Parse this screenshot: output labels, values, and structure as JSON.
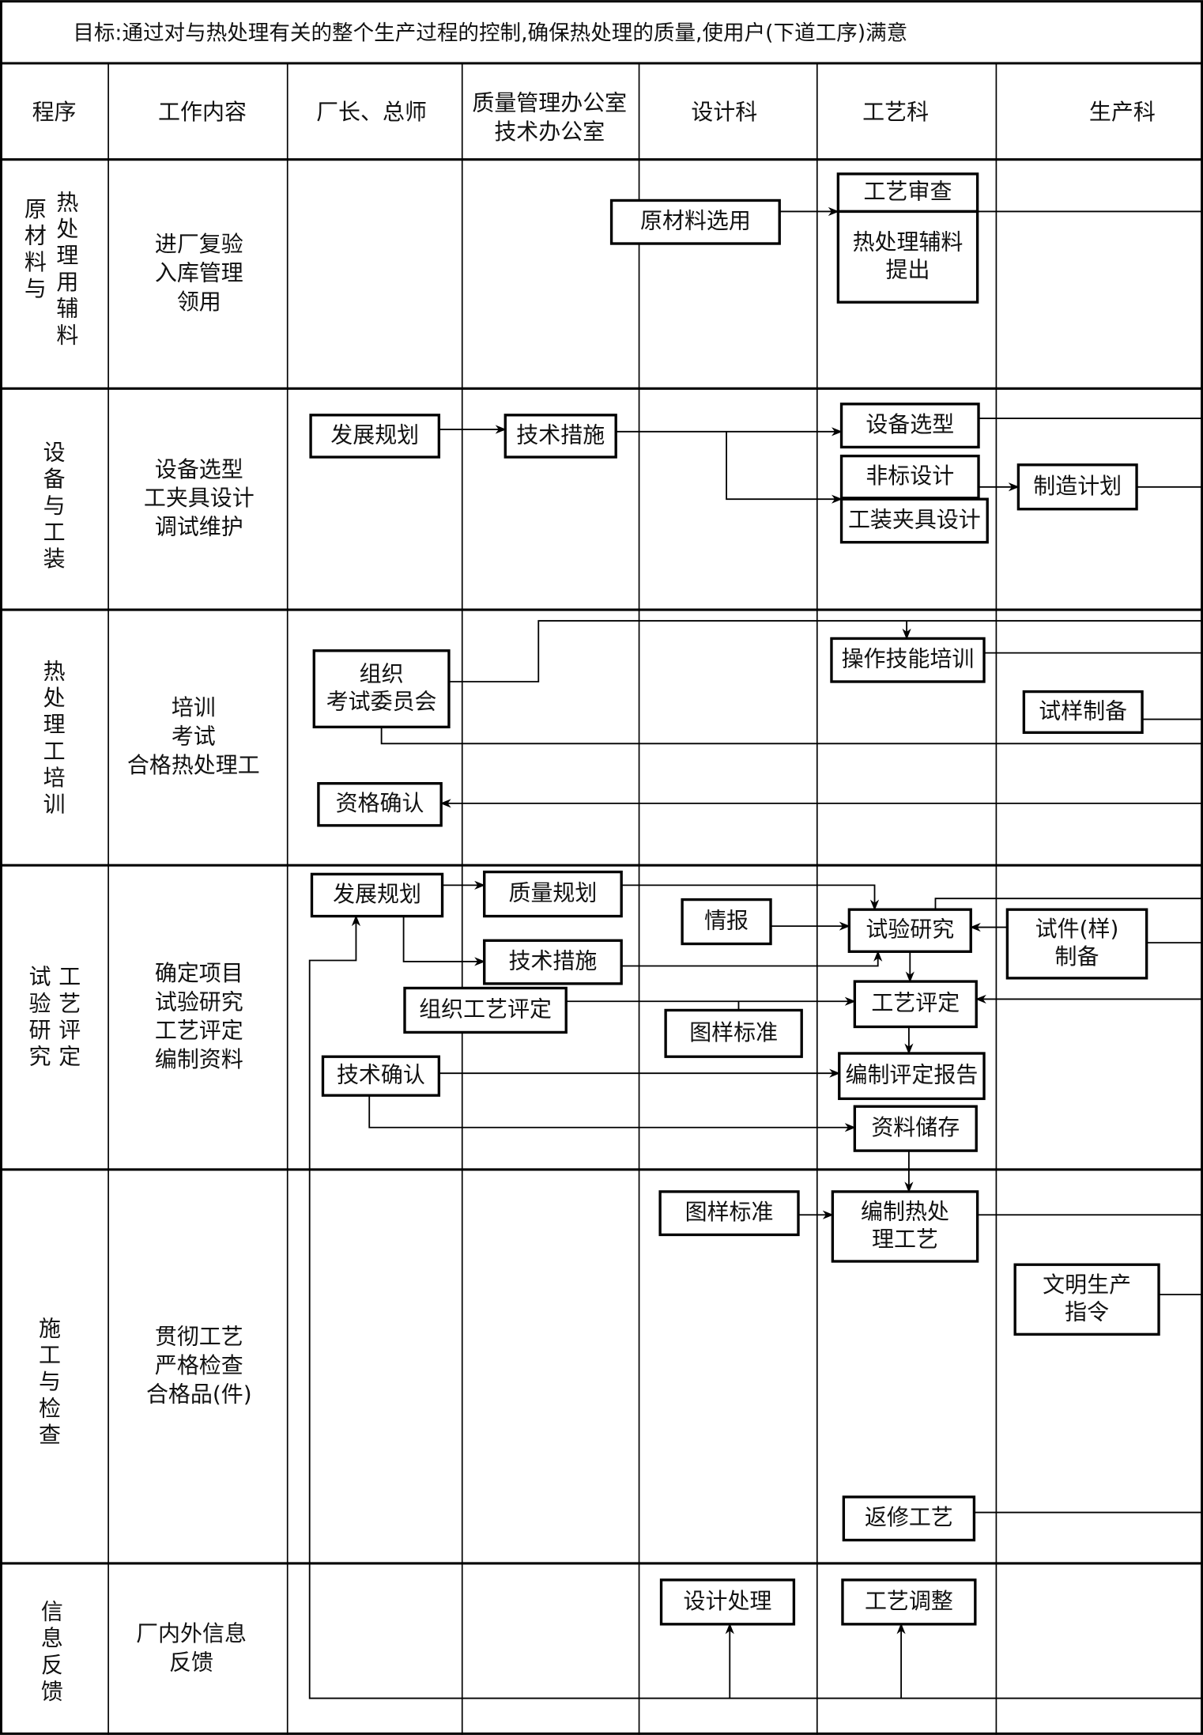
{
  "goal": "目标:通过对与热处理有关的整个生产过程的控制,确保热处理的质量,使用户(下道工序)满意",
  "headers": [
    "程序",
    "工作内容",
    "厂长、总师",
    [
      "质量管理办公室",
      "技术办公室"
    ],
    "设计科",
    "工艺科",
    "生产科"
  ],
  "rows": [
    {
      "procedure": [
        "原材料与",
        "热处理用辅料"
      ],
      "content": [
        "进厂复验",
        "入库管理",
        "领用"
      ]
    },
    {
      "procedure": [
        "设备与工装"
      ],
      "content": [
        "设备选型",
        "工夹具设计",
        "调试维护"
      ]
    },
    {
      "procedure": [
        "热处理工培训"
      ],
      "content": [
        "培训",
        "考试",
        "合格热处理工"
      ]
    },
    {
      "procedure": [
        "试验研究",
        "工艺评定"
      ],
      "content": [
        "确定项目",
        "试验研究",
        "工艺评定",
        "编制资料"
      ]
    },
    {
      "procedure": [
        "施工与检查"
      ],
      "content": [
        "贯彻工艺",
        "严格检查",
        "合格品(件)"
      ]
    },
    {
      "procedure": [
        "信息反馈"
      ],
      "content": [
        "厂内外信息",
        "反馈"
      ]
    }
  ],
  "boxes": {
    "raw_select": [
      "原材料选用"
    ],
    "process_review": [
      "工艺审查"
    ],
    "aux_material": [
      "热处理辅料",
      "提出"
    ],
    "dev_plan_1": [
      "发展规划"
    ],
    "tech_measure_1": [
      "技术措施"
    ],
    "equip_select": [
      "设备选型"
    ],
    "nonstd_design": [
      "非标设计"
    ],
    "fixture_design": [
      "工装夹具设计"
    ],
    "mfg_plan": [
      "制造计划"
    ],
    "exam_committee": [
      "组织",
      "考试委员会"
    ],
    "skill_training": [
      "操作技能培训"
    ],
    "sample_prep": [
      "试样制备"
    ],
    "qualification": [
      "资格确认"
    ],
    "dev_plan_2": [
      "发展规划"
    ],
    "quality_plan": [
      "质量规划"
    ],
    "intel": [
      "情报"
    ],
    "test_research": [
      "试验研究"
    ],
    "specimen_prep": [
      "试件(样)",
      "制备"
    ],
    "tech_measure_2": [
      "技术措施"
    ],
    "org_eval": [
      "组织工艺评定"
    ],
    "process_eval": [
      "工艺评定"
    ],
    "drawing_std_1": [
      "图样标准"
    ],
    "tech_confirm": [
      "技术确认"
    ],
    "eval_report": [
      "编制评定报告"
    ],
    "data_storage": [
      "资料储存"
    ],
    "drawing_std_2": [
      "图样标准"
    ],
    "ht_process": [
      "编制热处",
      "理工艺"
    ],
    "civil_prod": [
      "文明生产",
      "指令"
    ],
    "rework": [
      "返修工艺"
    ],
    "design_handle": [
      "设计处理"
    ],
    "process_adjust": [
      "工艺调整"
    ]
  }
}
